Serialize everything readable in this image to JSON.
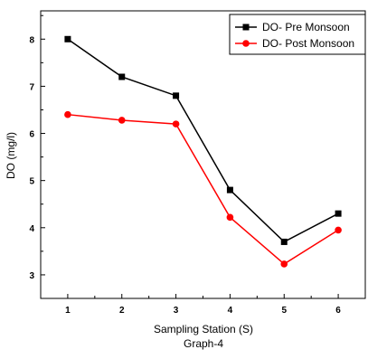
{
  "chart_data": {
    "type": "line",
    "title": "",
    "caption": "Graph-4",
    "xlabel": "Sampling Station (S)",
    "ylabel": "DO (mg/l)",
    "x": [
      1,
      2,
      3,
      4,
      5,
      6
    ],
    "xlim": [
      0.5,
      6.5
    ],
    "ylim": [
      2.5,
      8.6
    ],
    "yticks": [
      3,
      4,
      5,
      6,
      7,
      8
    ],
    "grid": false,
    "legend_position": "top-right",
    "series": [
      {
        "name": "DO- Pre Monsoon",
        "color": "#000000",
        "marker": "square",
        "values": [
          8.0,
          7.2,
          6.8,
          4.8,
          3.7,
          4.3
        ]
      },
      {
        "name": "DO- Post Monsoon",
        "color": "#ff0000",
        "marker": "circle",
        "values": [
          6.4,
          6.28,
          6.2,
          4.22,
          3.23,
          3.95
        ]
      }
    ]
  }
}
